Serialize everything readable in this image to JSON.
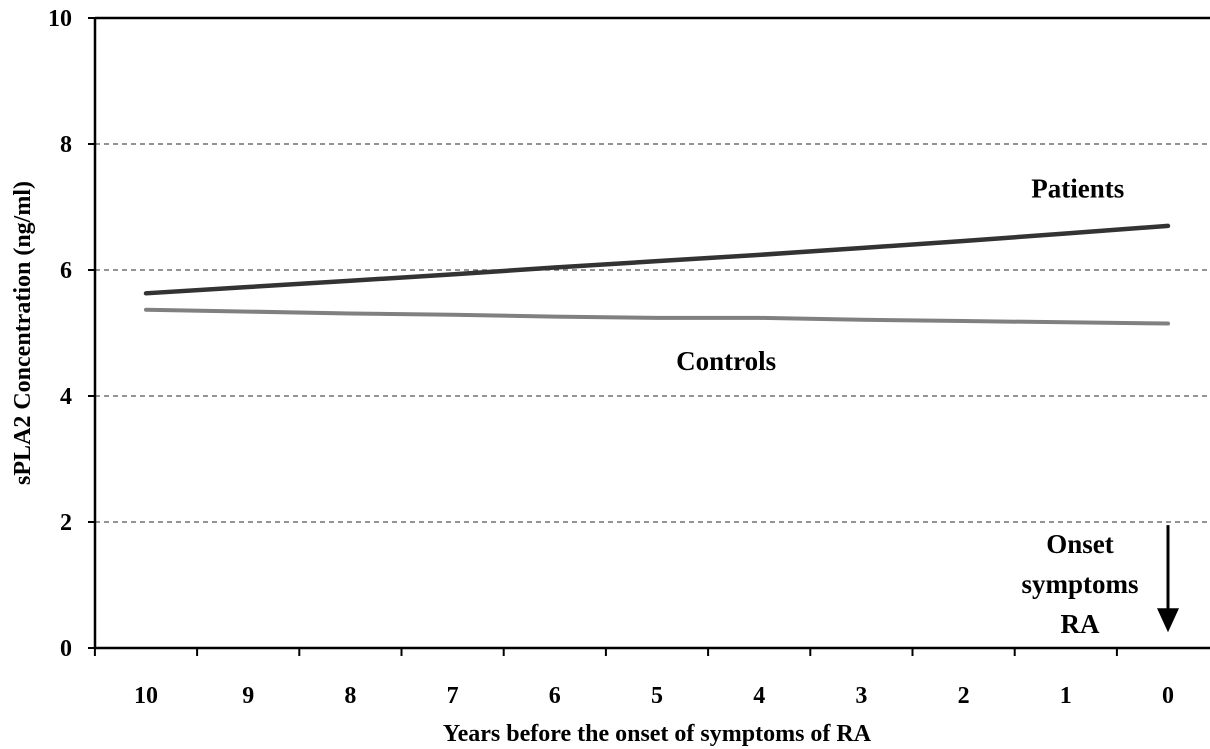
{
  "chart_data": {
    "type": "line",
    "title": "",
    "xlabel": "Years before the onset of symptoms of RA",
    "ylabel": "sPLA2 Concentration (ng/ml)",
    "x": [
      10,
      9,
      8,
      7,
      6,
      5,
      4,
      3,
      2,
      1,
      0
    ],
    "x_tick_labels": [
      "10",
      "9",
      "8",
      "7",
      "6",
      "5",
      "4",
      "3",
      "2",
      "1",
      "0"
    ],
    "y_tick_labels": [
      "0",
      "2",
      "4",
      "6",
      "8",
      "10"
    ],
    "ylim": [
      0,
      10
    ],
    "grid": "horizontal dashed",
    "series": [
      {
        "name": "Patients",
        "values": [
          5.63,
          5.73,
          5.83,
          5.93,
          6.04,
          6.14,
          6.24,
          6.35,
          6.46,
          6.58,
          6.7
        ],
        "color": "#333333"
      },
      {
        "name": "Controls",
        "values": [
          5.37,
          5.34,
          5.31,
          5.29,
          5.26,
          5.24,
          5.24,
          5.21,
          5.19,
          5.17,
          5.15
        ],
        "color": "#808080"
      }
    ],
    "annotation": {
      "lines": [
        "Onset",
        "symptoms",
        "RA"
      ],
      "x": 0,
      "arrow_from_y": 1.95,
      "arrow_to_y": 0.25
    }
  }
}
